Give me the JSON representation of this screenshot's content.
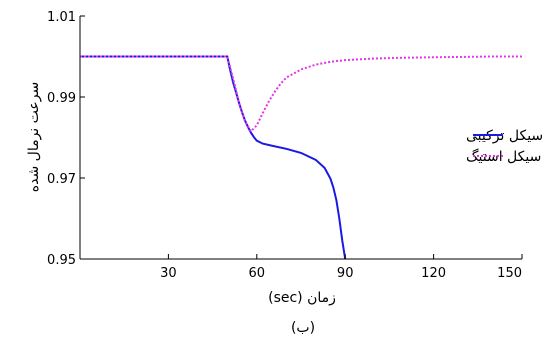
{
  "chart_data": {
    "type": "line",
    "xlabel": "زمان (sec)",
    "ylabel": "سرعت نرمال شده",
    "caption": "(ب)",
    "xlim": [
      0,
      150
    ],
    "ylim": [
      0.95,
      1.01
    ],
    "xticks": [
      30,
      60,
      90,
      120,
      150
    ],
    "yticks": [
      0.95,
      0.97,
      0.99,
      1.01
    ],
    "legend_position": "right-middle",
    "grid": false,
    "series": [
      {
        "name": "سیکل ترکیبی",
        "color": "#1a1ae6",
        "style": "solid",
        "x": [
          0,
          10,
          20,
          30,
          40,
          50,
          51,
          52,
          53,
          54,
          55,
          56,
          57,
          58,
          59,
          60,
          62,
          65,
          70,
          75,
          80,
          83,
          85,
          86,
          87,
          88,
          89,
          90
        ],
        "y": [
          1.0,
          1.0,
          1.0,
          1.0,
          1.0,
          1.0,
          0.9965,
          0.9935,
          0.991,
          0.9885,
          0.9862,
          0.9842,
          0.9826,
          0.9812,
          0.9801,
          0.9792,
          0.9785,
          0.978,
          0.9772,
          0.9762,
          0.9745,
          0.9725,
          0.9698,
          0.9676,
          0.9645,
          0.96,
          0.9545,
          0.95
        ]
      },
      {
        "name": "سیکل استیگ",
        "color": "#e633e6",
        "style": "dotted",
        "x": [
          0,
          10,
          20,
          30,
          40,
          50,
          52,
          54,
          56,
          58,
          60,
          62,
          64,
          66,
          68,
          70,
          75,
          80,
          85,
          90,
          100,
          110,
          120,
          130,
          140,
          150
        ],
        "y": [
          1.0,
          1.0,
          1.0,
          1.0,
          1.0,
          1.0,
          0.9945,
          0.9885,
          0.984,
          0.9815,
          0.983,
          0.986,
          0.9888,
          0.9912,
          0.9932,
          0.9948,
          0.9968,
          0.998,
          0.9987,
          0.9991,
          0.9995,
          0.9997,
          0.9998,
          0.9999,
          1.0,
          1.0
        ]
      }
    ]
  }
}
